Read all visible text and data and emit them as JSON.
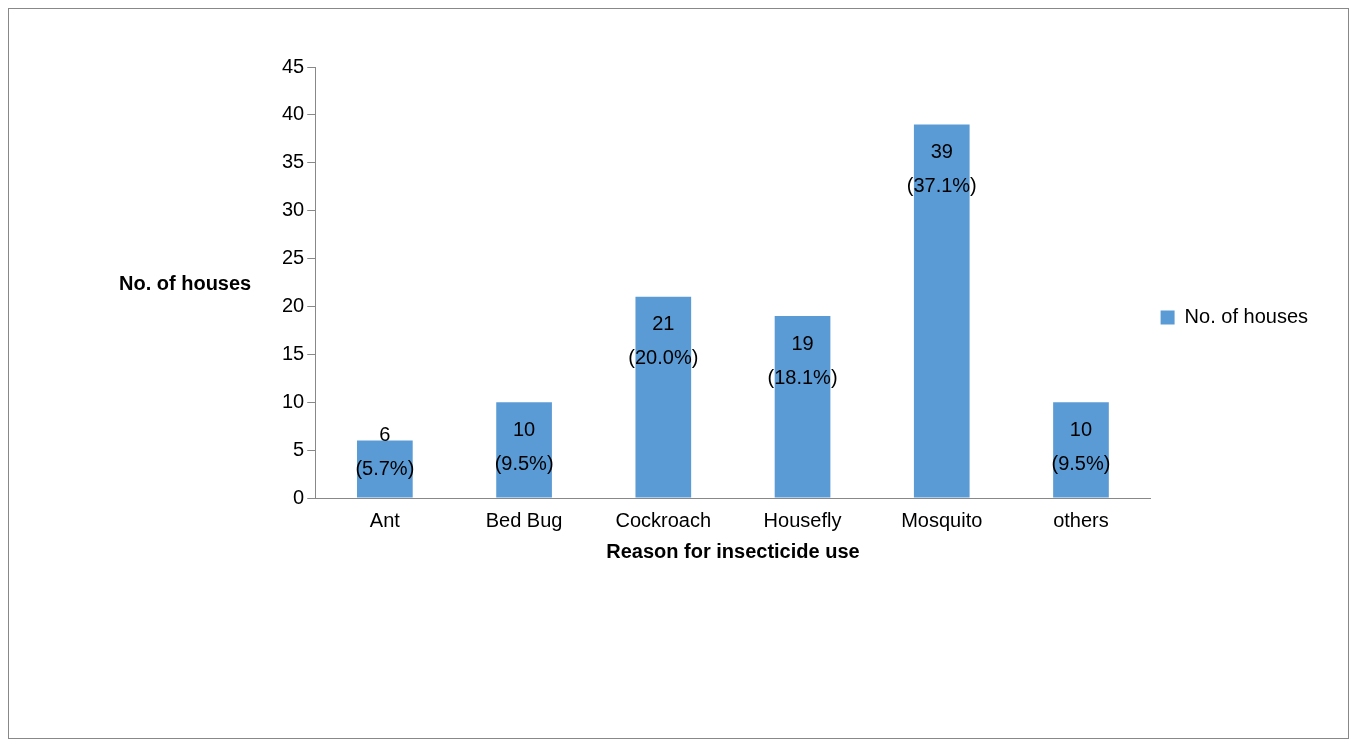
{
  "chart_data": {
    "type": "bar",
    "xlabel": "Reason for insecticide use",
    "ylabel": "No. of houses",
    "categories": [
      "Ant",
      "Bed Bug",
      "Cockroach",
      "Housefly",
      "Mosquito",
      "others"
    ],
    "series": [
      {
        "name": "No. of houses",
        "color": "#5b9bd5",
        "values": [
          6,
          10,
          21,
          19,
          39,
          10
        ],
        "value_labels": [
          "6\n(5.7%)",
          "10\n(9.5%)",
          "21\n(20.0%)",
          "19\n(18.1%)",
          "39\n(37.1%)",
          "10\n(9.5%)"
        ]
      }
    ],
    "ylim": [
      0,
      45
    ],
    "yticks": [
      0,
      5,
      10,
      15,
      20,
      25,
      30,
      35,
      40,
      45
    ],
    "grid": false,
    "legend": "right"
  }
}
